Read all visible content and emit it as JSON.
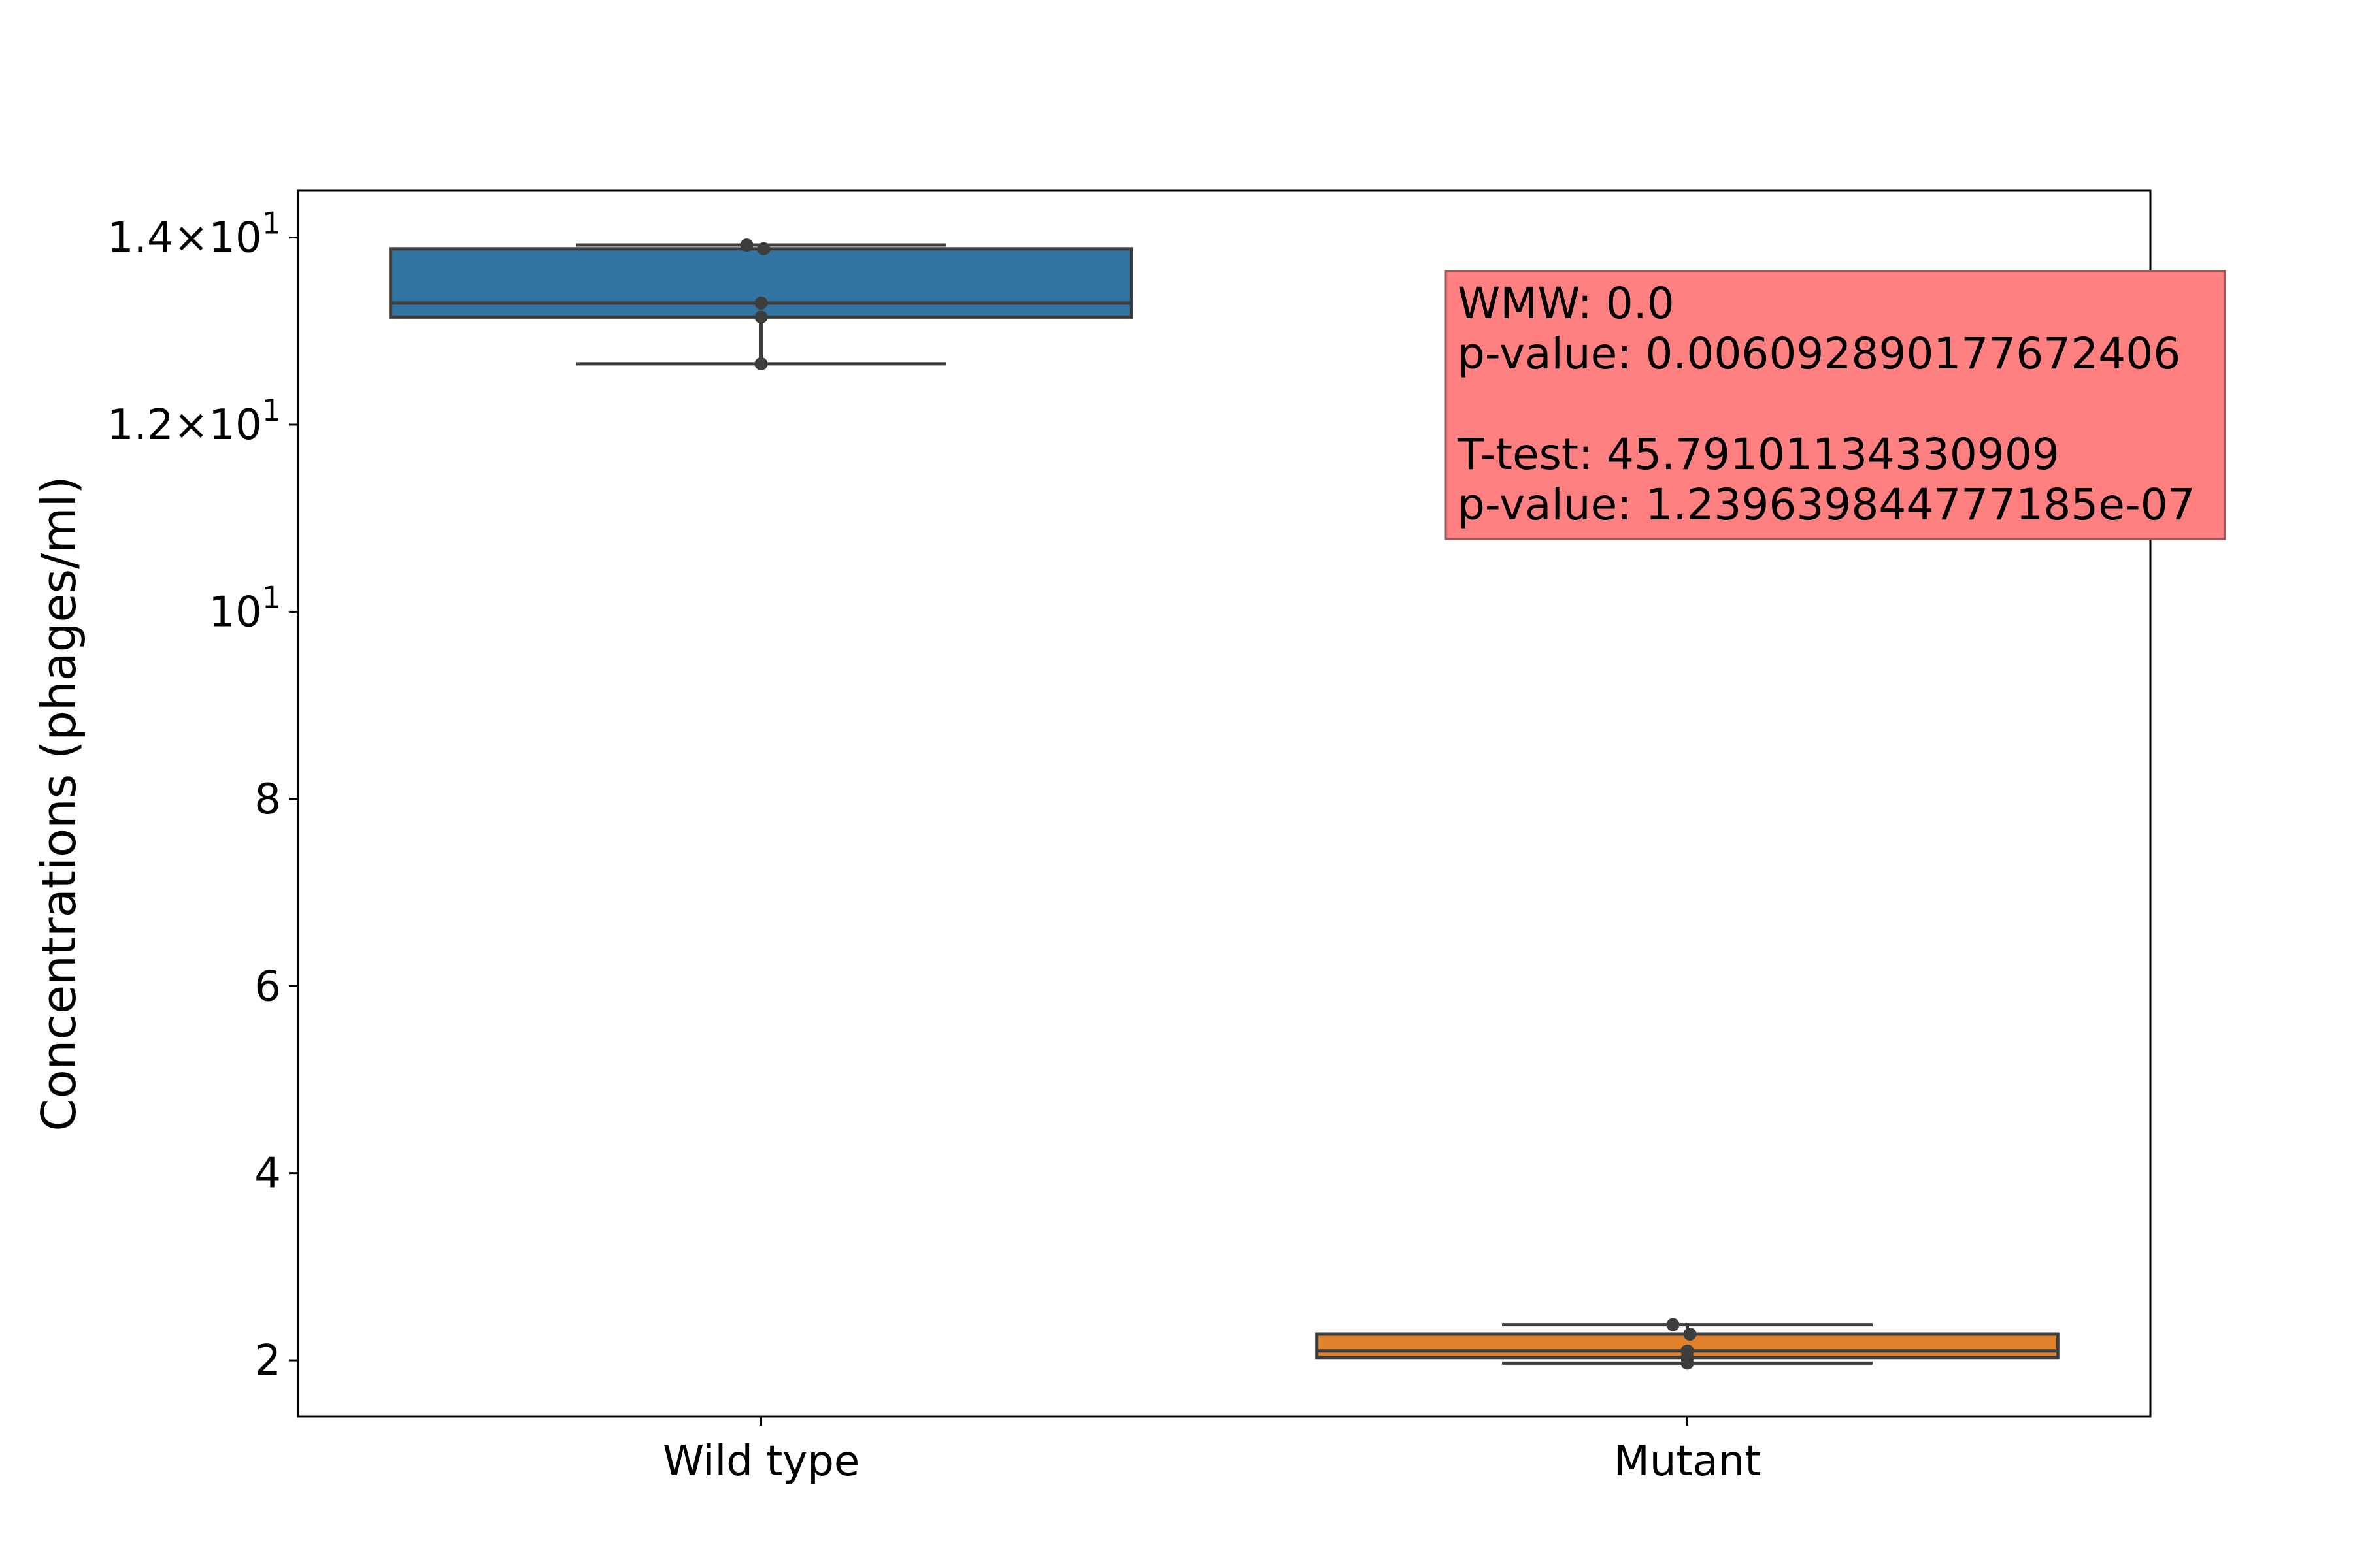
{
  "chart_data": {
    "type": "box",
    "ylabel": "Concentrations (phages/ml)",
    "xlabel": "",
    "title": "",
    "ylim": [
      1.4,
      14.5
    ],
    "y_ticks": [
      {
        "value": 2,
        "label": "2"
      },
      {
        "value": 4,
        "label": "4"
      },
      {
        "value": 6,
        "label": "6"
      },
      {
        "value": 8,
        "label": "8"
      },
      {
        "value": 10,
        "label": "10",
        "sup": "1"
      },
      {
        "value": 12,
        "label": "1.2×10",
        "sup": "1"
      },
      {
        "value": 14,
        "label": "1.4×10",
        "sup": "1"
      }
    ],
    "categories": [
      "Wild type",
      "Mutant"
    ],
    "boxes": [
      {
        "name": "Wild type",
        "color": "#3274A1",
        "q1": 13.15,
        "median": 13.3,
        "q3": 13.88,
        "whisker_low": 12.65,
        "whisker_high": 13.92,
        "points": [
          13.92,
          13.88,
          13.3,
          13.15,
          12.65
        ]
      },
      {
        "name": "Mutant",
        "color": "#E1812C",
        "q1": 2.03,
        "median": 2.1,
        "q3": 2.28,
        "whisker_low": 1.97,
        "whisker_high": 2.38,
        "points": [
          2.38,
          2.28,
          2.1,
          2.03,
          1.97
        ]
      }
    ],
    "annotation": {
      "lines": [
        "WMW: 0.0",
        "p-value: 0.006092890177672406",
        "",
        "T-test: 45.79101134330909",
        "p-value: 1.239639844777185e-07"
      ],
      "background": "#FF8080"
    },
    "grid": false,
    "legend": "none"
  }
}
